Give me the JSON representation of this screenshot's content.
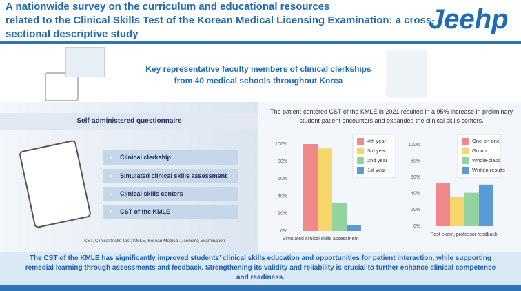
{
  "header": {
    "title": [
      "A nationwide survey on the curriculum and educational resources",
      "related to the Clinical Skills Test of the Korean Medical Licensing Examination: a cross-",
      "sectional descriptive study"
    ],
    "logo": "Jeehp"
  },
  "banner": [
    "Key representative faculty members of clinical clerkships",
    "from 40 medical schools throughout Korea"
  ],
  "questionnaire": {
    "heading": "Self-administered questionnaire",
    "items": [
      "Clinical clerkship",
      "Simulated clinical skills assessment",
      "Clinical skills centers",
      "CST of the KMLE"
    ],
    "footnote": "CST, Clinical Skills Test; KMLE, Korean Medical Licensing Examination"
  },
  "results_intro": [
    "The patient-centered CST of the KMLE in 2021 resulted in a 95% increase in preliminary",
    "student-patient encounters and expanded the clinical skills centers."
  ],
  "chart_data": [
    {
      "type": "bar",
      "categories": [
        "Simulated clinical skills assessment"
      ],
      "series": [
        {
          "name": "4th year",
          "color": "#f08a8a",
          "values": [
            100
          ]
        },
        {
          "name": "3rd year",
          "color": "#f6d66a",
          "values": [
            95
          ]
        },
        {
          "name": "2nd year",
          "color": "#93d3a2",
          "values": [
            32
          ]
        },
        {
          "name": "1st year",
          "color": "#5b9bd5",
          "values": [
            7
          ]
        }
      ],
      "ylim": [
        0,
        100
      ],
      "yticks": [
        {
          "value": 0,
          "label": "0%"
        },
        {
          "value": 20,
          "label": "20%"
        },
        {
          "value": 40,
          "label": "40%"
        },
        {
          "value": 60,
          "label": "60%"
        },
        {
          "value": 80,
          "label": "80%"
        },
        {
          "value": 100,
          "label": "100%"
        }
      ],
      "legend": "upper right"
    },
    {
      "type": "bar",
      "categories": [
        "Post-exam, professor feedback"
      ],
      "series": [
        {
          "name": "One-on-one",
          "color": "#f08a8a",
          "values": [
            53
          ]
        },
        {
          "name": "Group",
          "color": "#f6d66a",
          "values": [
            36
          ]
        },
        {
          "name": "Whole-class",
          "color": "#93d3a2",
          "values": [
            41
          ]
        },
        {
          "name": "Written results",
          "color": "#5b9bd5",
          "values": [
            51
          ]
        }
      ],
      "ylim": [
        0,
        100
      ],
      "yticks": [
        {
          "value": 0,
          "label": "0%"
        },
        {
          "value": 20,
          "label": "20%"
        },
        {
          "value": 40,
          "label": "40%"
        },
        {
          "value": 60,
          "label": "60%"
        },
        {
          "value": 80,
          "label": "80%"
        },
        {
          "value": 100,
          "label": "100%"
        }
      ],
      "legend": "upper right"
    }
  ],
  "conclusion": [
    "The CST of the KMLE has significantly improved students’ clinical skills education and opportunities for patient interaction, while supporting",
    "remedial learning through assessments and feedback. Strengthening its validity and reliability is crucial to further enhance clinical competence",
    "and readiness."
  ]
}
